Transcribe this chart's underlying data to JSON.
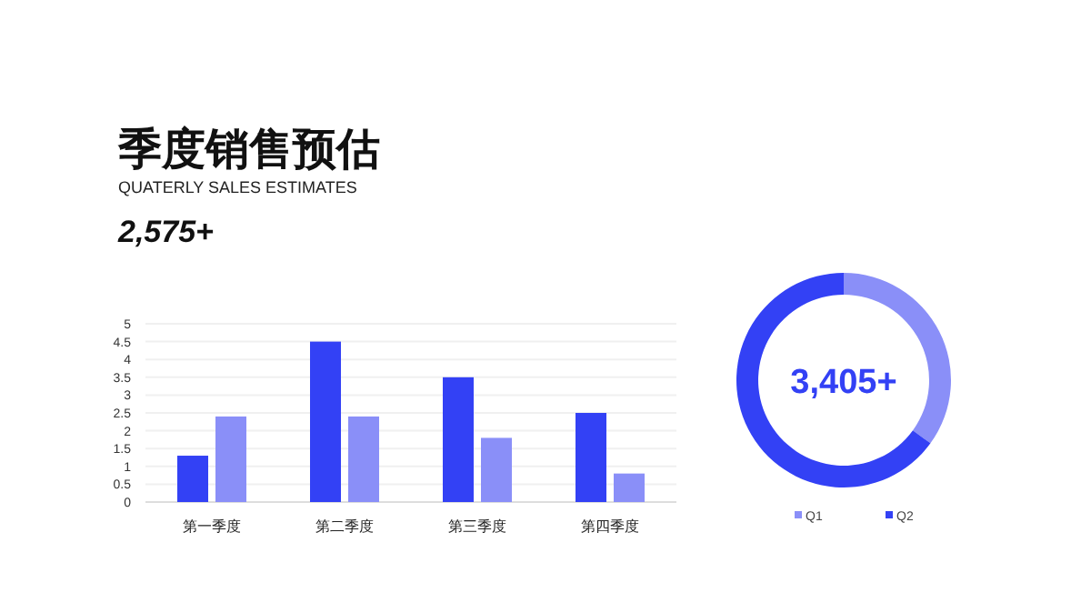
{
  "chart_data": [
    {
      "type": "bar",
      "title": "季度销售预估",
      "subtitle": "QUATERLY SALES ESTIMATES",
      "annotations": [
        "2,575+"
      ],
      "categories": [
        "第一季度",
        "第二季度",
        "第三季度",
        "第四季度"
      ],
      "series": [
        {
          "color": "#3341f5",
          "values": [
            1.3,
            4.5,
            3.5,
            2.5
          ]
        },
        {
          "color": "#8a8ff8",
          "values": [
            2.4,
            2.4,
            1.8,
            0.8
          ]
        }
      ],
      "ylim": [
        0,
        5
      ],
      "yticks": [
        0,
        0.5,
        1,
        1.5,
        2,
        2.5,
        3,
        3.5,
        4,
        4.5,
        5
      ],
      "grid": "y"
    },
    {
      "type": "donut",
      "categories": [
        "Q1",
        "Q2"
      ],
      "values": [
        35,
        65
      ],
      "colors": [
        "#8a8ff8",
        "#3341f5"
      ],
      "annotations": [
        "3,405+"
      ],
      "legend": "bottom"
    }
  ]
}
